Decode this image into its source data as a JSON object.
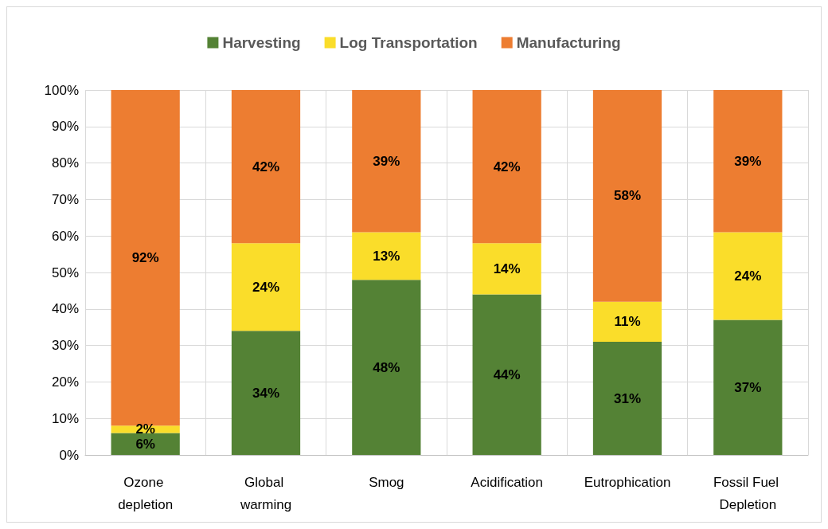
{
  "chart_data": {
    "type": "bar",
    "stacked": true,
    "categories": [
      "Ozone depletion",
      "Global warming",
      "Smog",
      "Acidification",
      "Eutrophication",
      "Fossil Fuel Depletion"
    ],
    "series": [
      {
        "name": "Harvesting",
        "color": "#548235",
        "values": [
          6,
          34,
          48,
          44,
          31,
          37
        ],
        "value_labels": [
          "6%",
          "34%",
          "48%",
          "44%",
          "31%",
          "37%"
        ]
      },
      {
        "name": "Log Transportation",
        "color": "#fadd2a",
        "values": [
          2,
          24,
          13,
          14,
          11,
          24
        ],
        "value_labels": [
          "2%",
          "24%",
          "13%",
          "14%",
          "11%",
          "24%"
        ]
      },
      {
        "name": "Manufacturing",
        "color": "#ed7d31",
        "values": [
          92,
          42,
          39,
          42,
          58,
          39
        ],
        "value_labels": [
          "92%",
          "42%",
          "39%",
          "42%",
          "58%",
          "39%"
        ]
      }
    ],
    "ylim": [
      0,
      100
    ],
    "yticks": [
      {
        "value": 0,
        "label": "0%"
      },
      {
        "value": 10,
        "label": "10%"
      },
      {
        "value": 20,
        "label": "20%"
      },
      {
        "value": 30,
        "label": "30%"
      },
      {
        "value": 40,
        "label": "40%"
      },
      {
        "value": 50,
        "label": "50%"
      },
      {
        "value": 60,
        "label": "60%"
      },
      {
        "value": 70,
        "label": "70%"
      },
      {
        "value": 80,
        "label": "80%"
      },
      {
        "value": 90,
        "label": "90%"
      },
      {
        "value": 100,
        "label": "100%"
      }
    ],
    "grid": true,
    "legend": "top"
  }
}
